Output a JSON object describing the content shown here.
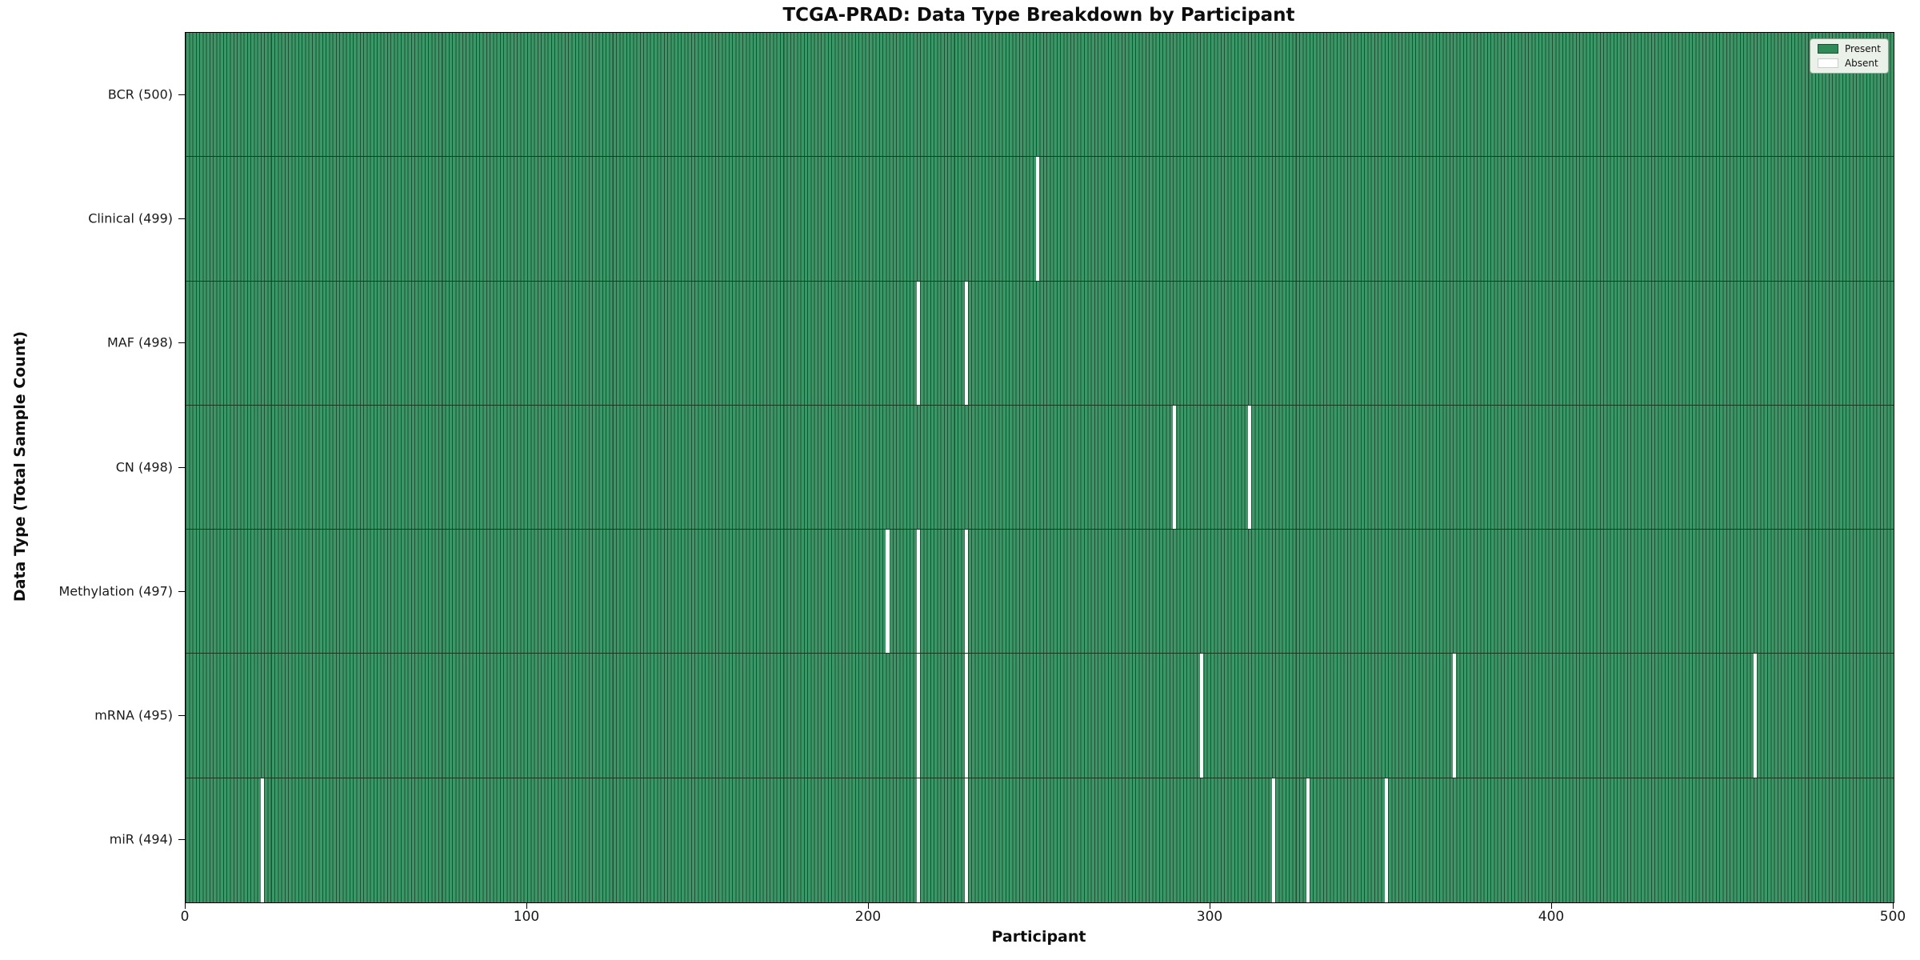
{
  "chart_data": {
    "type": "heatmap",
    "title": "TCGA-PRAD: Data Type Breakdown by Participant",
    "xlabel": "Participant",
    "ylabel": "Data Type (Total Sample Count)",
    "x_range": [
      0,
      500
    ],
    "x_ticks": [
      0,
      100,
      200,
      300,
      400,
      500
    ],
    "n_participants": 500,
    "grid": false,
    "legend_position": "upper right",
    "legend": [
      {
        "label": "Present",
        "color": "#2e8b57"
      },
      {
        "label": "Absent",
        "color": "#ffffff"
      }
    ],
    "colors": {
      "present_fill": "#3b9767",
      "bar_edge_stripe": "#1f5033",
      "row_separator": "#16381f",
      "absent_fill": "#ffffff",
      "plot_border": "#000000"
    },
    "rows": [
      {
        "name": "BCR",
        "label": "BCR (500)",
        "total": 500,
        "absent_participants": []
      },
      {
        "name": "Clinical",
        "label": "Clinical (499)",
        "total": 499,
        "absent_participants": [
          249
        ]
      },
      {
        "name": "MAF",
        "label": "MAF (498)",
        "total": 498,
        "absent_participants": [
          214,
          228
        ]
      },
      {
        "name": "CN",
        "label": "CN (498)",
        "total": 498,
        "absent_participants": [
          289,
          311
        ]
      },
      {
        "name": "Methylation",
        "label": "Methylation (497)",
        "total": 497,
        "absent_participants": [
          205,
          214,
          228
        ]
      },
      {
        "name": "mRNA",
        "label": "mRNA (495)",
        "total": 495,
        "absent_participants": [
          214,
          228,
          297,
          371,
          459
        ]
      },
      {
        "name": "miR",
        "label": "miR (494)",
        "total": 494,
        "absent_participants": [
          22,
          214,
          228,
          318,
          328,
          351
        ]
      }
    ]
  }
}
